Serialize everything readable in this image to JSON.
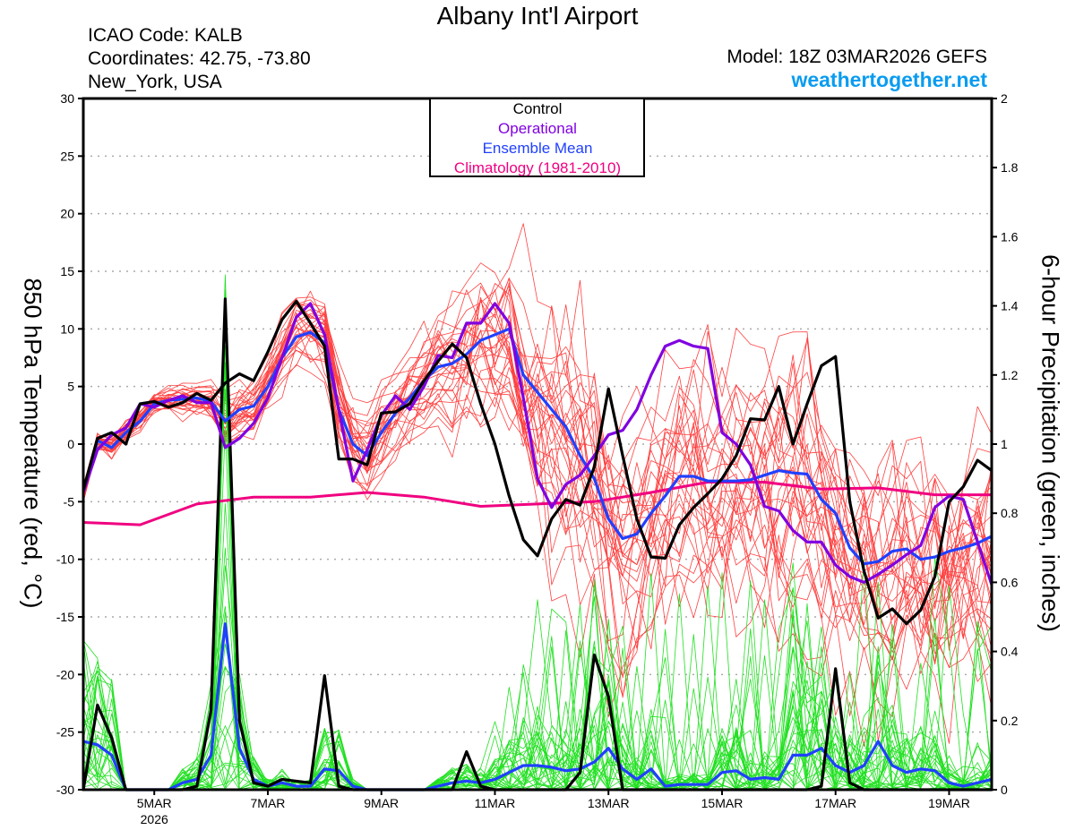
{
  "header": {
    "title": "Albany Int'l Airport",
    "icao": "ICAO Code: KALB",
    "coords": "Coordinates: 42.75, -73.80",
    "location": "New_York, USA",
    "model": "Model: 18Z 03MAR2026 GEFS",
    "site": "weathertogether.net"
  },
  "colors": {
    "control": "#000000",
    "operational": "#8000e0",
    "mean": "#2040ff",
    "climatology": "#f00080",
    "member_temp": "#ff4040",
    "member_precip": "#20e020",
    "site": "#0a9cf0"
  },
  "chart_data": {
    "type": "line",
    "title": "Albany Int'l Airport",
    "ylabel_left": "850 hPa Temperature (red, °C)",
    "ylabel_right": "6-hour Precipitation (green, inches)",
    "ylim_left": [
      -30,
      30
    ],
    "ylim_right": [
      0,
      2
    ],
    "left_ticks": [
      30,
      25,
      20,
      15,
      10,
      5,
      0,
      -5,
      -10,
      -15,
      -20,
      -25,
      -30
    ],
    "right_ticks": [
      "0",
      "0.2",
      "0.4",
      "0.6",
      "0.8",
      "1",
      "1.2",
      "1.4",
      "1.6",
      "1.8",
      "2"
    ],
    "grid": "dotted horizontal at left ticks",
    "x_units": "hours since 18Z 03MAR2026",
    "x_step_hours": 6,
    "xlim_hours": [
      0,
      384
    ],
    "x_ticks": [
      {
        "hour": 30,
        "label": "5MAR",
        "sub": "2026"
      },
      {
        "hour": 78,
        "label": "7MAR"
      },
      {
        "hour": 126,
        "label": "9MAR"
      },
      {
        "hour": 174,
        "label": "11MAR"
      },
      {
        "hour": 222,
        "label": "13MAR"
      },
      {
        "hour": 270,
        "label": "15MAR"
      },
      {
        "hour": 318,
        "label": "17MAR"
      },
      {
        "hour": 366,
        "label": "19MAR"
      }
    ],
    "legend": {
      "placement": "top-center",
      "entries": [
        "Control",
        "Operational",
        "Ensemble Mean",
        "Climatology (1981-2010)"
      ]
    },
    "temperature": {
      "control": [
        -4,
        0.5,
        1,
        0,
        3.5,
        3.7,
        3.2,
        3.6,
        4.4,
        3.8,
        5.3,
        6.1,
        5.5,
        8,
        10.8,
        12.4,
        10.5,
        8.5,
        -1.3,
        -1.3,
        -1.8,
        2.7,
        2.8,
        3.5,
        5.5,
        7.2,
        8.7,
        7.5,
        3.5,
        0,
        -4.5,
        -8.3,
        -9.7,
        -6.5,
        -4.8,
        -5.3,
        -2,
        4.8,
        -1,
        -6.5,
        -9.8,
        -9.9,
        -7,
        -5.5,
        -4.3,
        -3,
        -1,
        2.2,
        2.1,
        5,
        0,
        3.5,
        6.8,
        7.6,
        -5,
        -11,
        -15.1,
        -14.3,
        -15.6,
        -14.4,
        -11.5,
        -5,
        -3.7,
        -1.4,
        -2.3
      ],
      "operational": [
        -4.2,
        -0.5,
        0.8,
        1.4,
        3.5,
        3.2,
        3.8,
        4.2,
        3.6,
        3.6,
        -0.3,
        0.5,
        1.8,
        4,
        7.5,
        11,
        12.2,
        9.5,
        3,
        -3.2,
        -0.5,
        2.5,
        4.2,
        3,
        5,
        7.7,
        7.5,
        10.5,
        10.5,
        12.2,
        10.5,
        4,
        -3,
        -5.5,
        -3.5,
        -2.7,
        -1,
        0.8,
        1.2,
        3,
        6,
        8.5,
        9,
        8.5,
        8.3,
        1,
        0,
        -1.8,
        -5.4,
        -5.8,
        -7.5,
        -8.5,
        -8.5,
        -10.5,
        -11.5,
        -12,
        -11.3,
        -10.5,
        -9.6,
        -8.8,
        -5.5,
        -4.5,
        -4.8,
        -8.5,
        -12.2
      ],
      "ensemble_mean": [
        -4.2,
        0.3,
        -0.3,
        1,
        2,
        3.5,
        3.8,
        3.9,
        4,
        3.7,
        2,
        3,
        3.3,
        5,
        7.5,
        9.3,
        9.7,
        8.8,
        3,
        0,
        -1,
        1,
        2.7,
        4,
        5.5,
        6.7,
        7,
        7.8,
        9,
        9.5,
        10,
        6,
        4.5,
        3,
        1.5,
        -1,
        -3,
        -6.5,
        -8.2,
        -7.8,
        -6,
        -4.5,
        -2.8,
        -2.8,
        -3.2,
        -3.2,
        -3.2,
        -3.1,
        -2.7,
        -2.3,
        -2.5,
        -2.6,
        -4.8,
        -6,
        -9,
        -10.4,
        -10.2,
        -9.3,
        -9.1,
        -10,
        -9.8,
        -9.3,
        -9,
        -8.6,
        -8
      ],
      "climatology": {
        "hours": [
          0,
          24,
          48,
          72,
          96,
          120,
          144,
          168,
          192,
          216,
          240,
          264,
          288,
          312,
          336,
          360,
          384
        ],
        "values": [
          -6.8,
          -7.0,
          -5.2,
          -4.6,
          -4.6,
          -4.2,
          -4.6,
          -5.4,
          -5.2,
          -5.0,
          -4.2,
          -3.3,
          -3.3,
          -3.9,
          -3.8,
          -4.4,
          -4.4
        ]
      },
      "member_spread": [
        0.5,
        0.6,
        0.7,
        0.7,
        0.6,
        0.6,
        0.6,
        0.7,
        0.8,
        0.9,
        1.2,
        1.3,
        1.2,
        1.2,
        1.3,
        1.5,
        1.6,
        1.8,
        2,
        2,
        2,
        1.8,
        1.8,
        2,
        2.2,
        2.5,
        2.8,
        3,
        3.2,
        3.5,
        4,
        4.5,
        5,
        5.5,
        6,
        6,
        6,
        6,
        6,
        6,
        6,
        6,
        6,
        6,
        6,
        6,
        6,
        6,
        6,
        6,
        6,
        6,
        6,
        6,
        6,
        6,
        6,
        6,
        6,
        6,
        6,
        6,
        6,
        6,
        6
      ],
      "member_count": 30
    },
    "precipitation": {
      "control": [
        0,
        0.245,
        0.15,
        0,
        0,
        0,
        0,
        0,
        0.01,
        0.23,
        1.42,
        0.2,
        0.02,
        0.01,
        0.03,
        0.025,
        0.02,
        0.33,
        0.01,
        0,
        0,
        0,
        0,
        0,
        0,
        0,
        0,
        0.11,
        0.01,
        0,
        0,
        0,
        0,
        0,
        0,
        0.05,
        0.39,
        0.27,
        0,
        0,
        0,
        0,
        0,
        0,
        0,
        0,
        0,
        0,
        0,
        0,
        0,
        0,
        0.01,
        0.35,
        0.02,
        0,
        0,
        0,
        0,
        0,
        0,
        0,
        0,
        0,
        0
      ],
      "ensemble_mean": [
        0.14,
        0.13,
        0.1,
        0,
        0,
        0,
        0,
        0.02,
        0.03,
        0.1,
        0.48,
        0.12,
        0.03,
        0.01,
        0.02,
        0.01,
        0.01,
        0.06,
        0.055,
        0.01,
        0,
        0,
        0,
        0,
        0,
        0.01,
        0.02,
        0.025,
        0.02,
        0.03,
        0.05,
        0.07,
        0.07,
        0.065,
        0.055,
        0.06,
        0.08,
        0.12,
        0.06,
        0.03,
        0.06,
        0.01,
        0.015,
        0.015,
        0.015,
        0.05,
        0.055,
        0.03,
        0.035,
        0.03,
        0.1,
        0.1,
        0.12,
        0.07,
        0.05,
        0.07,
        0.14,
        0.07,
        0.05,
        0.06,
        0.055,
        0.02,
        0.01,
        0.02,
        0.03
      ],
      "member_count": 30
    }
  }
}
